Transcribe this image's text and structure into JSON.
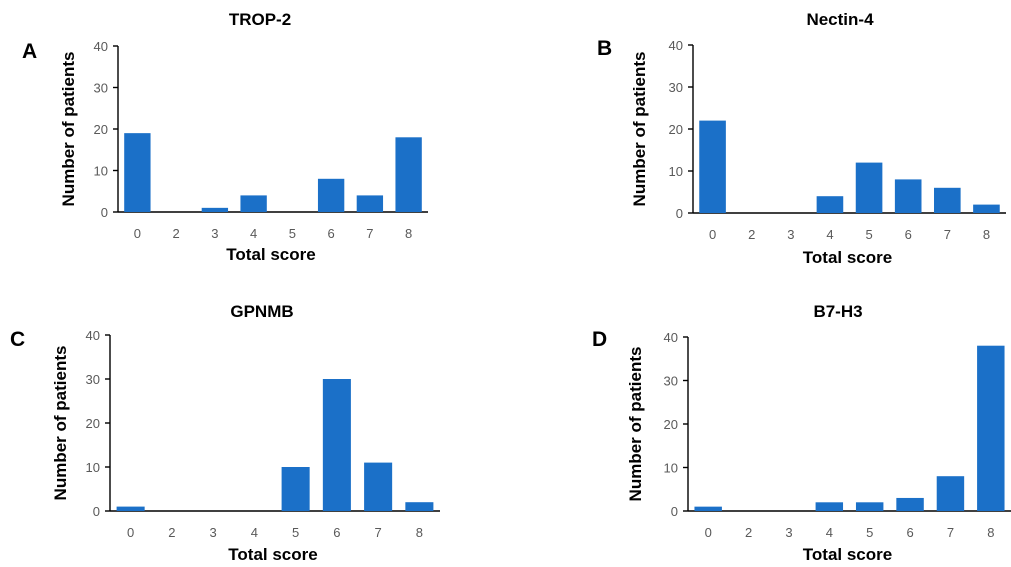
{
  "chart_data": [
    {
      "panel": "A",
      "type": "bar",
      "title": "TROP-2",
      "xlabel": "Total score",
      "ylabel": "Number of patients",
      "ylim": [
        0,
        40
      ],
      "yticks": [
        0,
        10,
        20,
        30,
        40
      ],
      "categories": [
        "0",
        "2",
        "3",
        "4",
        "5",
        "6",
        "7",
        "8"
      ],
      "values": [
        19,
        0,
        1,
        4,
        0,
        8,
        4,
        18
      ],
      "bar_color": "#1B70C8",
      "grid": false
    },
    {
      "panel": "B",
      "type": "bar",
      "title": "Nectin-4",
      "xlabel": "Total score",
      "ylabel": "Number of patients",
      "ylim": [
        0,
        40
      ],
      "yticks": [
        0,
        10,
        20,
        30,
        40
      ],
      "categories": [
        "0",
        "2",
        "3",
        "4",
        "5",
        "6",
        "7",
        "8"
      ],
      "values": [
        22,
        0,
        0,
        4,
        12,
        8,
        6,
        2
      ],
      "bar_color": "#1B70C8",
      "grid": false
    },
    {
      "panel": "C",
      "type": "bar",
      "title": "GPNMB",
      "xlabel": "Total score",
      "ylabel": "Number of patients",
      "ylim": [
        0,
        40
      ],
      "yticks": [
        0,
        10,
        20,
        30,
        40
      ],
      "categories": [
        "0",
        "2",
        "3",
        "4",
        "5",
        "6",
        "7",
        "8"
      ],
      "values": [
        1,
        0,
        0,
        0,
        10,
        30,
        11,
        2
      ],
      "bar_color": "#1B70C8",
      "grid": false
    },
    {
      "panel": "D",
      "type": "bar",
      "title": "B7-H3",
      "xlabel": "Total score",
      "ylabel": "Number of patients",
      "ylim": [
        0,
        40
      ],
      "yticks": [
        0,
        10,
        20,
        30,
        40
      ],
      "categories": [
        "0",
        "2",
        "3",
        "4",
        "5",
        "6",
        "7",
        "8"
      ],
      "values": [
        1,
        0,
        0,
        2,
        2,
        3,
        8,
        38
      ],
      "bar_color": "#1B70C8",
      "grid": false
    }
  ]
}
